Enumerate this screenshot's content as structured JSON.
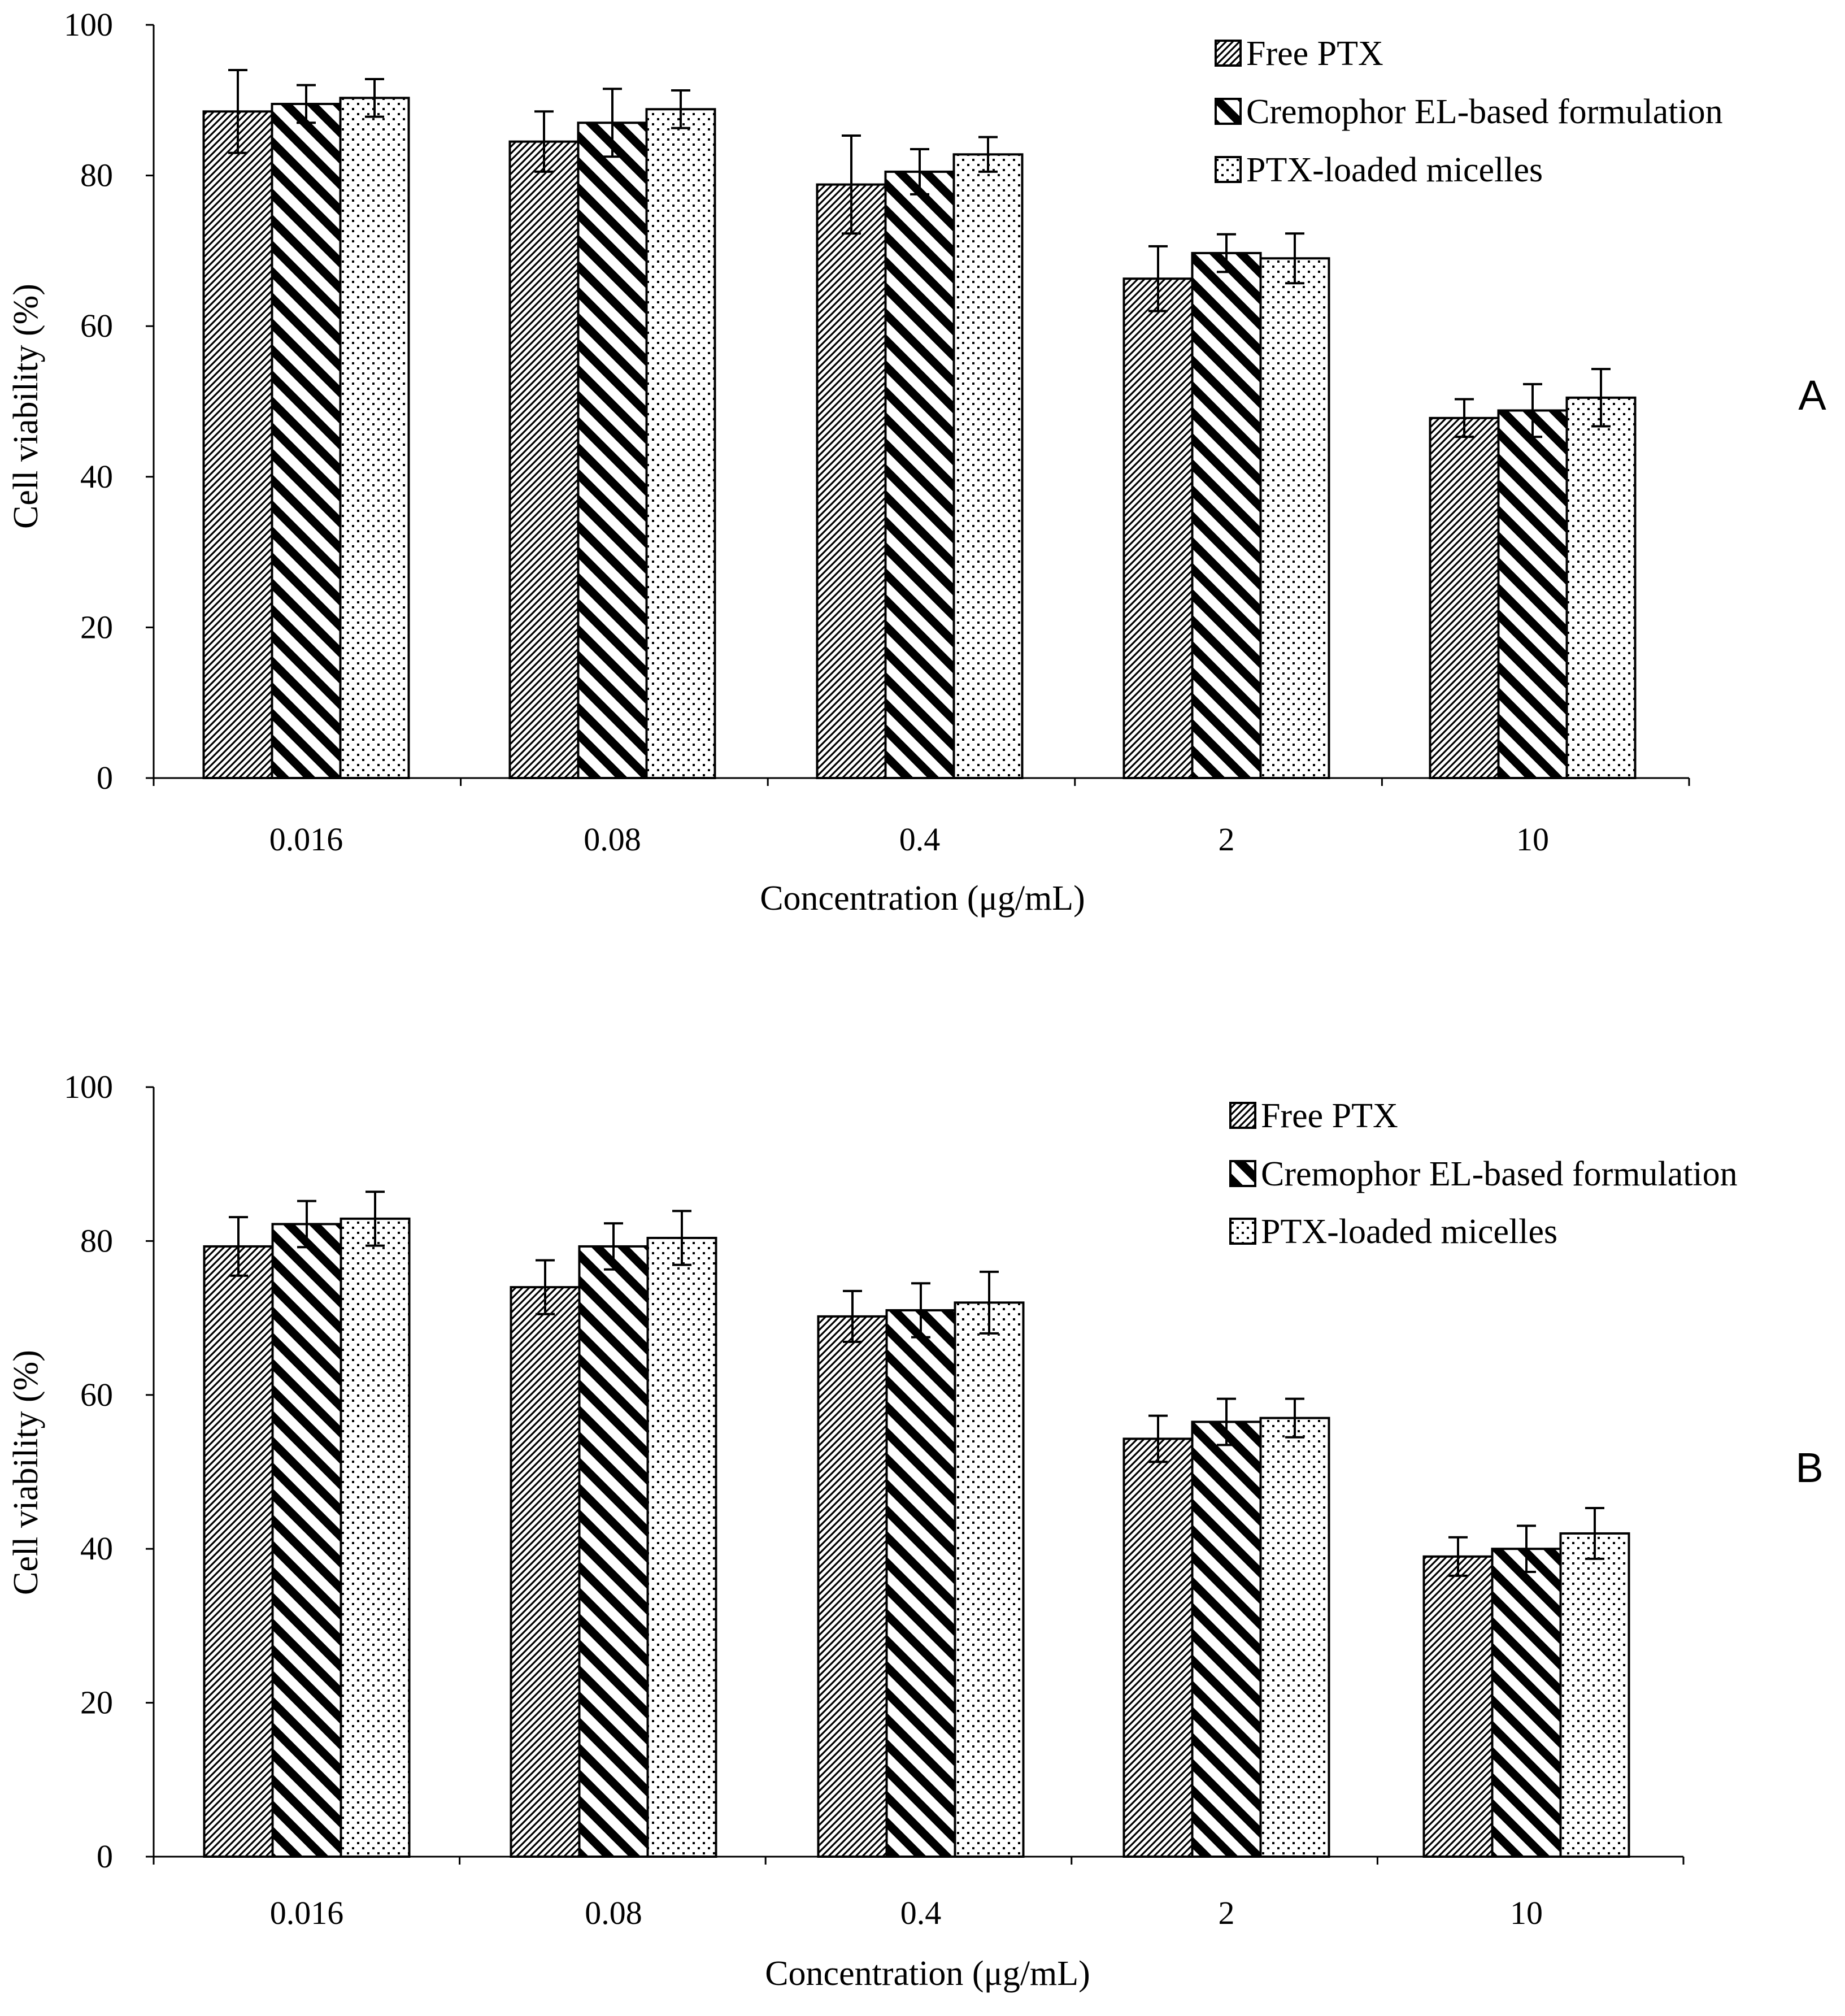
{
  "colors": {
    "ink": "#000000",
    "paper": "#ffffff"
  },
  "series_patterns": [
    "fine-diagonal-hatch",
    "bold-diagonal-stripes",
    "dotted"
  ],
  "chart_data": [
    {
      "type": "bar",
      "panel": "A",
      "title": "",
      "xlabel": "Concentration (μg/mL)",
      "ylabel": "Cell viability (%)",
      "ylim": [
        0,
        100
      ],
      "yticks": [
        "0",
        "20",
        "40",
        "60",
        "80",
        "100"
      ],
      "categories": [
        "0.016",
        "0.08",
        "0.4",
        "2",
        "10"
      ],
      "legend_position": "top-right",
      "grid": false,
      "series": [
        {
          "name": "Free PTX",
          "values": [
            88.5,
            84.5,
            78.8,
            66.3,
            47.8
          ],
          "errors": [
            5.5,
            4.0,
            6.5,
            4.3,
            2.5
          ]
        },
        {
          "name": "Cremophor EL-based formulation",
          "values": [
            89.5,
            87.0,
            80.5,
            69.7,
            48.8
          ],
          "errors": [
            2.5,
            4.5,
            3.0,
            2.5,
            3.5
          ]
        },
        {
          "name": "PTX-loaded micelles",
          "values": [
            90.3,
            88.8,
            82.8,
            69.0,
            50.5
          ],
          "errors": [
            2.5,
            2.5,
            2.3,
            3.3,
            3.8
          ]
        }
      ]
    },
    {
      "type": "bar",
      "panel": "B",
      "title": "",
      "xlabel": "Concentration (μg/mL)",
      "ylabel": "Cell viability (%)",
      "ylim": [
        0,
        100
      ],
      "yticks": [
        "0",
        "20",
        "40",
        "60",
        "80",
        "100"
      ],
      "categories": [
        "0.016",
        "0.08",
        "0.4",
        "2",
        "10"
      ],
      "legend_position": "top-right",
      "grid": false,
      "series": [
        {
          "name": "Free PTX",
          "values": [
            79.3,
            74.0,
            70.2,
            54.3,
            39.0
          ],
          "errors": [
            3.8,
            3.5,
            3.3,
            3.0,
            2.5
          ]
        },
        {
          "name": "Cremophor EL-based formulation",
          "values": [
            82.2,
            79.3,
            71.0,
            56.5,
            40.0
          ],
          "errors": [
            3.0,
            3.0,
            3.5,
            3.0,
            3.0
          ]
        },
        {
          "name": "PTX-loaded micelles",
          "values": [
            82.9,
            80.4,
            72.0,
            57.0,
            42.0
          ],
          "errors": [
            3.5,
            3.5,
            4.0,
            2.5,
            3.3
          ]
        }
      ]
    }
  ]
}
